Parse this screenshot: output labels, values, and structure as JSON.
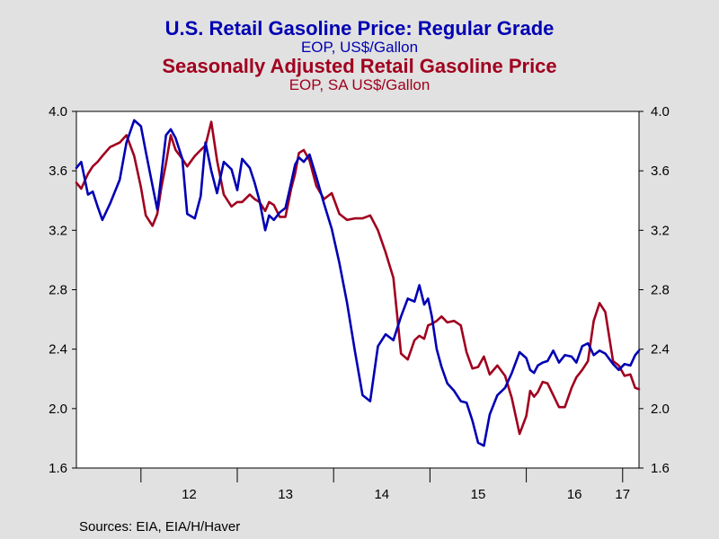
{
  "chart_data": {
    "type": "line",
    "title": "U.S. Retail Gasoline Price: Regular Grade",
    "subtitle": "EOP, US$/Gallon",
    "title2": "Seasonally Adjusted Retail Gasoline Price",
    "subtitle2": "EOP, SA US$/Gallon",
    "ylim": [
      1.6,
      4.0
    ],
    "y_ticks": [
      "4.0",
      "3.6",
      "3.2",
      "2.8",
      "2.4",
      "2.0",
      "1.6"
    ],
    "x_range": [
      2011.33,
      2017.17
    ],
    "x_ticks": [
      {
        "label": "12",
        "x": 2012.5
      },
      {
        "label": "13",
        "x": 2013.5
      },
      {
        "label": "14",
        "x": 2014.5
      },
      {
        "label": "15",
        "x": 2015.5
      },
      {
        "label": "16",
        "x": 2016.5
      },
      {
        "label": "17",
        "x": 2017.0
      }
    ],
    "grid": false,
    "series": [
      {
        "name": "U.S. Retail Gasoline Price: Regular Grade",
        "color": "#0000b4",
        "x": [
          2011.33,
          2011.38,
          2011.45,
          2011.5,
          2011.55,
          2011.6,
          2011.68,
          2011.78,
          2011.85,
          2011.93,
          2012.0,
          2012.05,
          2012.12,
          2012.17,
          2012.21,
          2012.26,
          2012.31,
          2012.36,
          2012.43,
          2012.48,
          2012.56,
          2012.62,
          2012.67,
          2012.73,
          2012.79,
          2012.86,
          2012.94,
          2013.0,
          2013.05,
          2013.13,
          2013.18,
          2013.23,
          2013.29,
          2013.33,
          2013.38,
          2013.44,
          2013.5,
          2013.56,
          2013.6,
          2013.64,
          2013.69,
          2013.75,
          2013.82,
          2013.9,
          2013.98,
          2014.06,
          2014.14,
          2014.22,
          2014.3,
          2014.38,
          2014.46,
          2014.54,
          2014.62,
          2014.7,
          2014.77,
          2014.84,
          2014.89,
          2014.94,
          2014.98,
          2015.02,
          2015.07,
          2015.12,
          2015.18,
          2015.25,
          2015.32,
          2015.38,
          2015.44,
          2015.5,
          2015.56,
          2015.62,
          2015.7,
          2015.78,
          2015.85,
          2015.93,
          2016.0,
          2016.04,
          2016.08,
          2016.12,
          2016.17,
          2016.22,
          2016.28,
          2016.34,
          2016.4,
          2016.47,
          2016.52,
          2016.58,
          2016.64,
          2016.7,
          2016.76,
          2016.82,
          2016.9,
          2016.96,
          2017.02,
          2017.08,
          2017.13,
          2017.17
        ],
        "values": [
          3.62,
          3.66,
          3.44,
          3.46,
          3.36,
          3.27,
          3.38,
          3.54,
          3.79,
          3.94,
          3.9,
          3.73,
          3.5,
          3.34,
          3.56,
          3.84,
          3.88,
          3.82,
          3.68,
          3.31,
          3.28,
          3.43,
          3.79,
          3.6,
          3.45,
          3.66,
          3.61,
          3.47,
          3.68,
          3.62,
          3.52,
          3.4,
          3.2,
          3.3,
          3.27,
          3.32,
          3.35,
          3.52,
          3.64,
          3.69,
          3.66,
          3.71,
          3.56,
          3.38,
          3.21,
          2.98,
          2.71,
          2.39,
          2.09,
          2.05,
          2.42,
          2.5,
          2.46,
          2.62,
          2.74,
          2.72,
          2.83,
          2.7,
          2.74,
          2.62,
          2.4,
          2.28,
          2.17,
          2.12,
          2.05,
          2.04,
          1.92,
          1.77,
          1.75,
          1.96,
          2.09,
          2.14,
          2.24,
          2.38,
          2.34,
          2.26,
          2.24,
          2.29,
          2.31,
          2.32,
          2.39,
          2.31,
          2.36,
          2.35,
          2.31,
          2.42,
          2.44,
          2.36,
          2.39,
          2.37,
          2.3,
          2.26,
          2.3,
          2.29,
          2.36,
          2.39
        ]
      },
      {
        "name": "Seasonally Adjusted Retail Gasoline Price",
        "color": "#a0001e",
        "x": [
          2011.33,
          2011.38,
          2011.45,
          2011.5,
          2011.55,
          2011.6,
          2011.68,
          2011.78,
          2011.85,
          2011.93,
          2012.0,
          2012.05,
          2012.12,
          2012.17,
          2012.21,
          2012.26,
          2012.31,
          2012.36,
          2012.43,
          2012.48,
          2012.56,
          2012.62,
          2012.67,
          2012.73,
          2012.79,
          2012.86,
          2012.94,
          2013.0,
          2013.05,
          2013.13,
          2013.18,
          2013.23,
          2013.29,
          2013.33,
          2013.38,
          2013.44,
          2013.5,
          2013.56,
          2013.6,
          2013.64,
          2013.69,
          2013.75,
          2013.82,
          2013.9,
          2013.98,
          2014.06,
          2014.14,
          2014.22,
          2014.3,
          2014.38,
          2014.46,
          2014.54,
          2014.62,
          2014.7,
          2014.77,
          2014.84,
          2014.89,
          2014.94,
          2014.98,
          2015.02,
          2015.07,
          2015.12,
          2015.18,
          2015.25,
          2015.32,
          2015.38,
          2015.44,
          2015.5,
          2015.56,
          2015.62,
          2015.7,
          2015.78,
          2015.85,
          2015.93,
          2016.0,
          2016.04,
          2016.08,
          2016.12,
          2016.17,
          2016.22,
          2016.28,
          2016.34,
          2016.4,
          2016.47,
          2016.52,
          2016.58,
          2016.64,
          2016.7,
          2016.76,
          2016.82,
          2016.9,
          2016.96,
          2017.02,
          2017.08,
          2017.13,
          2017.17
        ],
        "values": [
          3.52,
          3.48,
          3.58,
          3.63,
          3.66,
          3.7,
          3.76,
          3.79,
          3.84,
          3.7,
          3.49,
          3.3,
          3.23,
          3.31,
          3.48,
          3.65,
          3.84,
          3.74,
          3.68,
          3.63,
          3.7,
          3.74,
          3.77,
          3.93,
          3.67,
          3.44,
          3.36,
          3.39,
          3.39,
          3.44,
          3.41,
          3.39,
          3.33,
          3.39,
          3.37,
          3.29,
          3.29,
          3.48,
          3.58,
          3.72,
          3.74,
          3.67,
          3.5,
          3.41,
          3.45,
          3.31,
          3.27,
          3.28,
          3.28,
          3.3,
          3.2,
          3.05,
          2.88,
          2.37,
          2.33,
          2.46,
          2.49,
          2.47,
          2.56,
          2.57,
          2.59,
          2.62,
          2.58,
          2.59,
          2.56,
          2.38,
          2.27,
          2.28,
          2.35,
          2.23,
          2.29,
          2.22,
          2.07,
          1.83,
          1.95,
          2.12,
          2.08,
          2.11,
          2.18,
          2.17,
          2.09,
          2.01,
          2.01,
          2.14,
          2.21,
          2.26,
          2.32,
          2.59,
          2.71,
          2.65,
          2.32,
          2.29,
          2.22,
          2.23,
          2.14,
          2.13
        ]
      }
    ]
  },
  "source_text": "Sources:  EIA, EIA/H/Haver"
}
